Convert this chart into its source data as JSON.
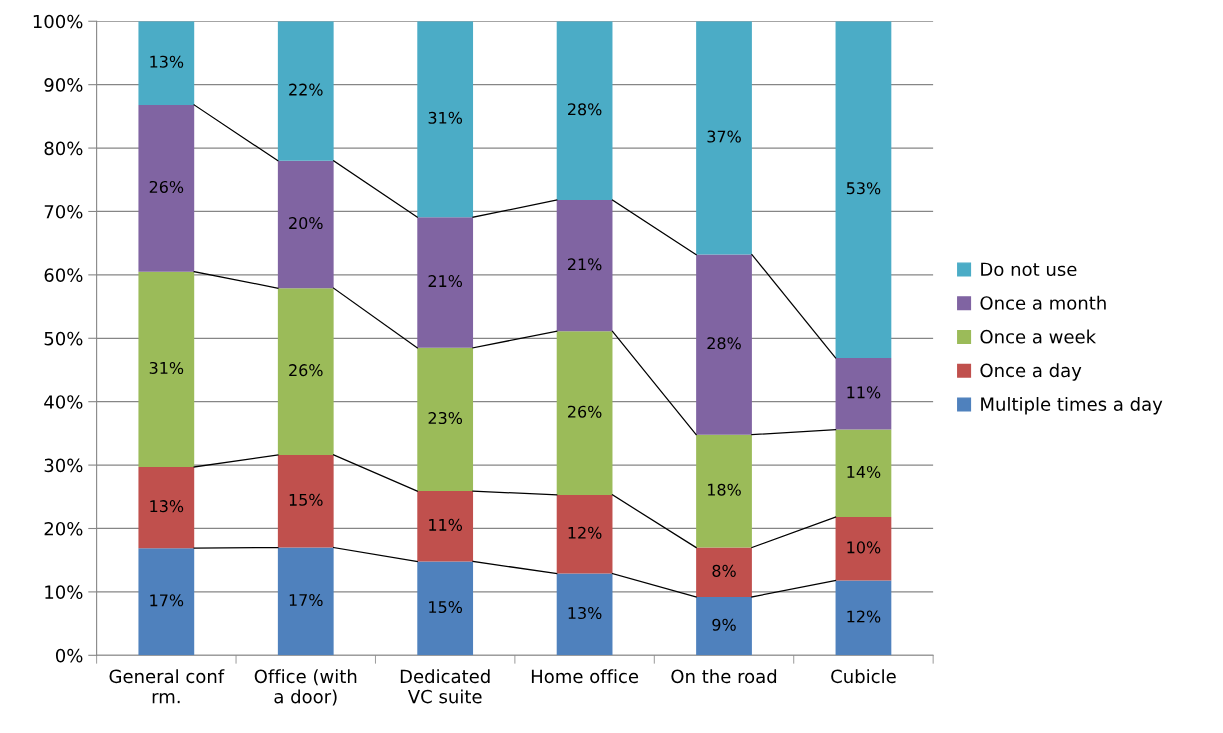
{
  "chart_data": {
    "type": "bar",
    "stacked": true,
    "categories": [
      "General conf\nrm.",
      "Office (with\na door)",
      "Dedicated\nVC suite",
      "Home office",
      "On the road",
      "Cubicle"
    ],
    "series": [
      {
        "name": "Multiple times a day",
        "color": "#4f81bd",
        "values": [
          16.9,
          17.0,
          14.8,
          12.9,
          9.2,
          11.8
        ],
        "value_labels": [
          "17%",
          "17%",
          "15%",
          "13%",
          "9%",
          "12%"
        ]
      },
      {
        "name": "Once a day",
        "color": "#c0504d",
        "values": [
          12.8,
          14.6,
          11.1,
          12.4,
          7.8,
          10.0
        ],
        "value_labels": [
          "13%",
          "15%",
          "11%",
          "12%",
          "8%",
          "10%"
        ]
      },
      {
        "name": "Once a week",
        "color": "#9bbb59",
        "values": [
          30.8,
          26.3,
          22.6,
          25.8,
          17.8,
          13.8
        ],
        "value_labels": [
          "31%",
          "26%",
          "23%",
          "26%",
          "18%",
          "14%"
        ]
      },
      {
        "name": "Once a month",
        "color": "#8064a2",
        "values": [
          26.3,
          20.1,
          20.6,
          20.7,
          28.4,
          11.3
        ],
        "value_labels": [
          "26%",
          "20%",
          "21%",
          "21%",
          "28%",
          "11%"
        ]
      },
      {
        "name": "Do not use",
        "color": "#4bacc6",
        "values": [
          13.2,
          22.0,
          30.9,
          28.2,
          36.8,
          53.1
        ],
        "value_labels": [
          "13%",
          "22%",
          "31%",
          "28%",
          "37%",
          "53%"
        ]
      }
    ],
    "ylim": [
      0,
      100
    ],
    "yticks": [
      {
        "value": 0,
        "label": "0%"
      },
      {
        "value": 10,
        "label": "10%"
      },
      {
        "value": 20,
        "label": "20%"
      },
      {
        "value": 30,
        "label": "30%"
      },
      {
        "value": 40,
        "label": "40%"
      },
      {
        "value": 50,
        "label": "50%"
      },
      {
        "value": 60,
        "label": "60%"
      },
      {
        "value": 70,
        "label": "70%"
      },
      {
        "value": 80,
        "label": "80%"
      },
      {
        "value": 90,
        "label": "90%"
      },
      {
        "value": 100,
        "label": "100%"
      }
    ],
    "grid": "y",
    "legend": "right"
  }
}
